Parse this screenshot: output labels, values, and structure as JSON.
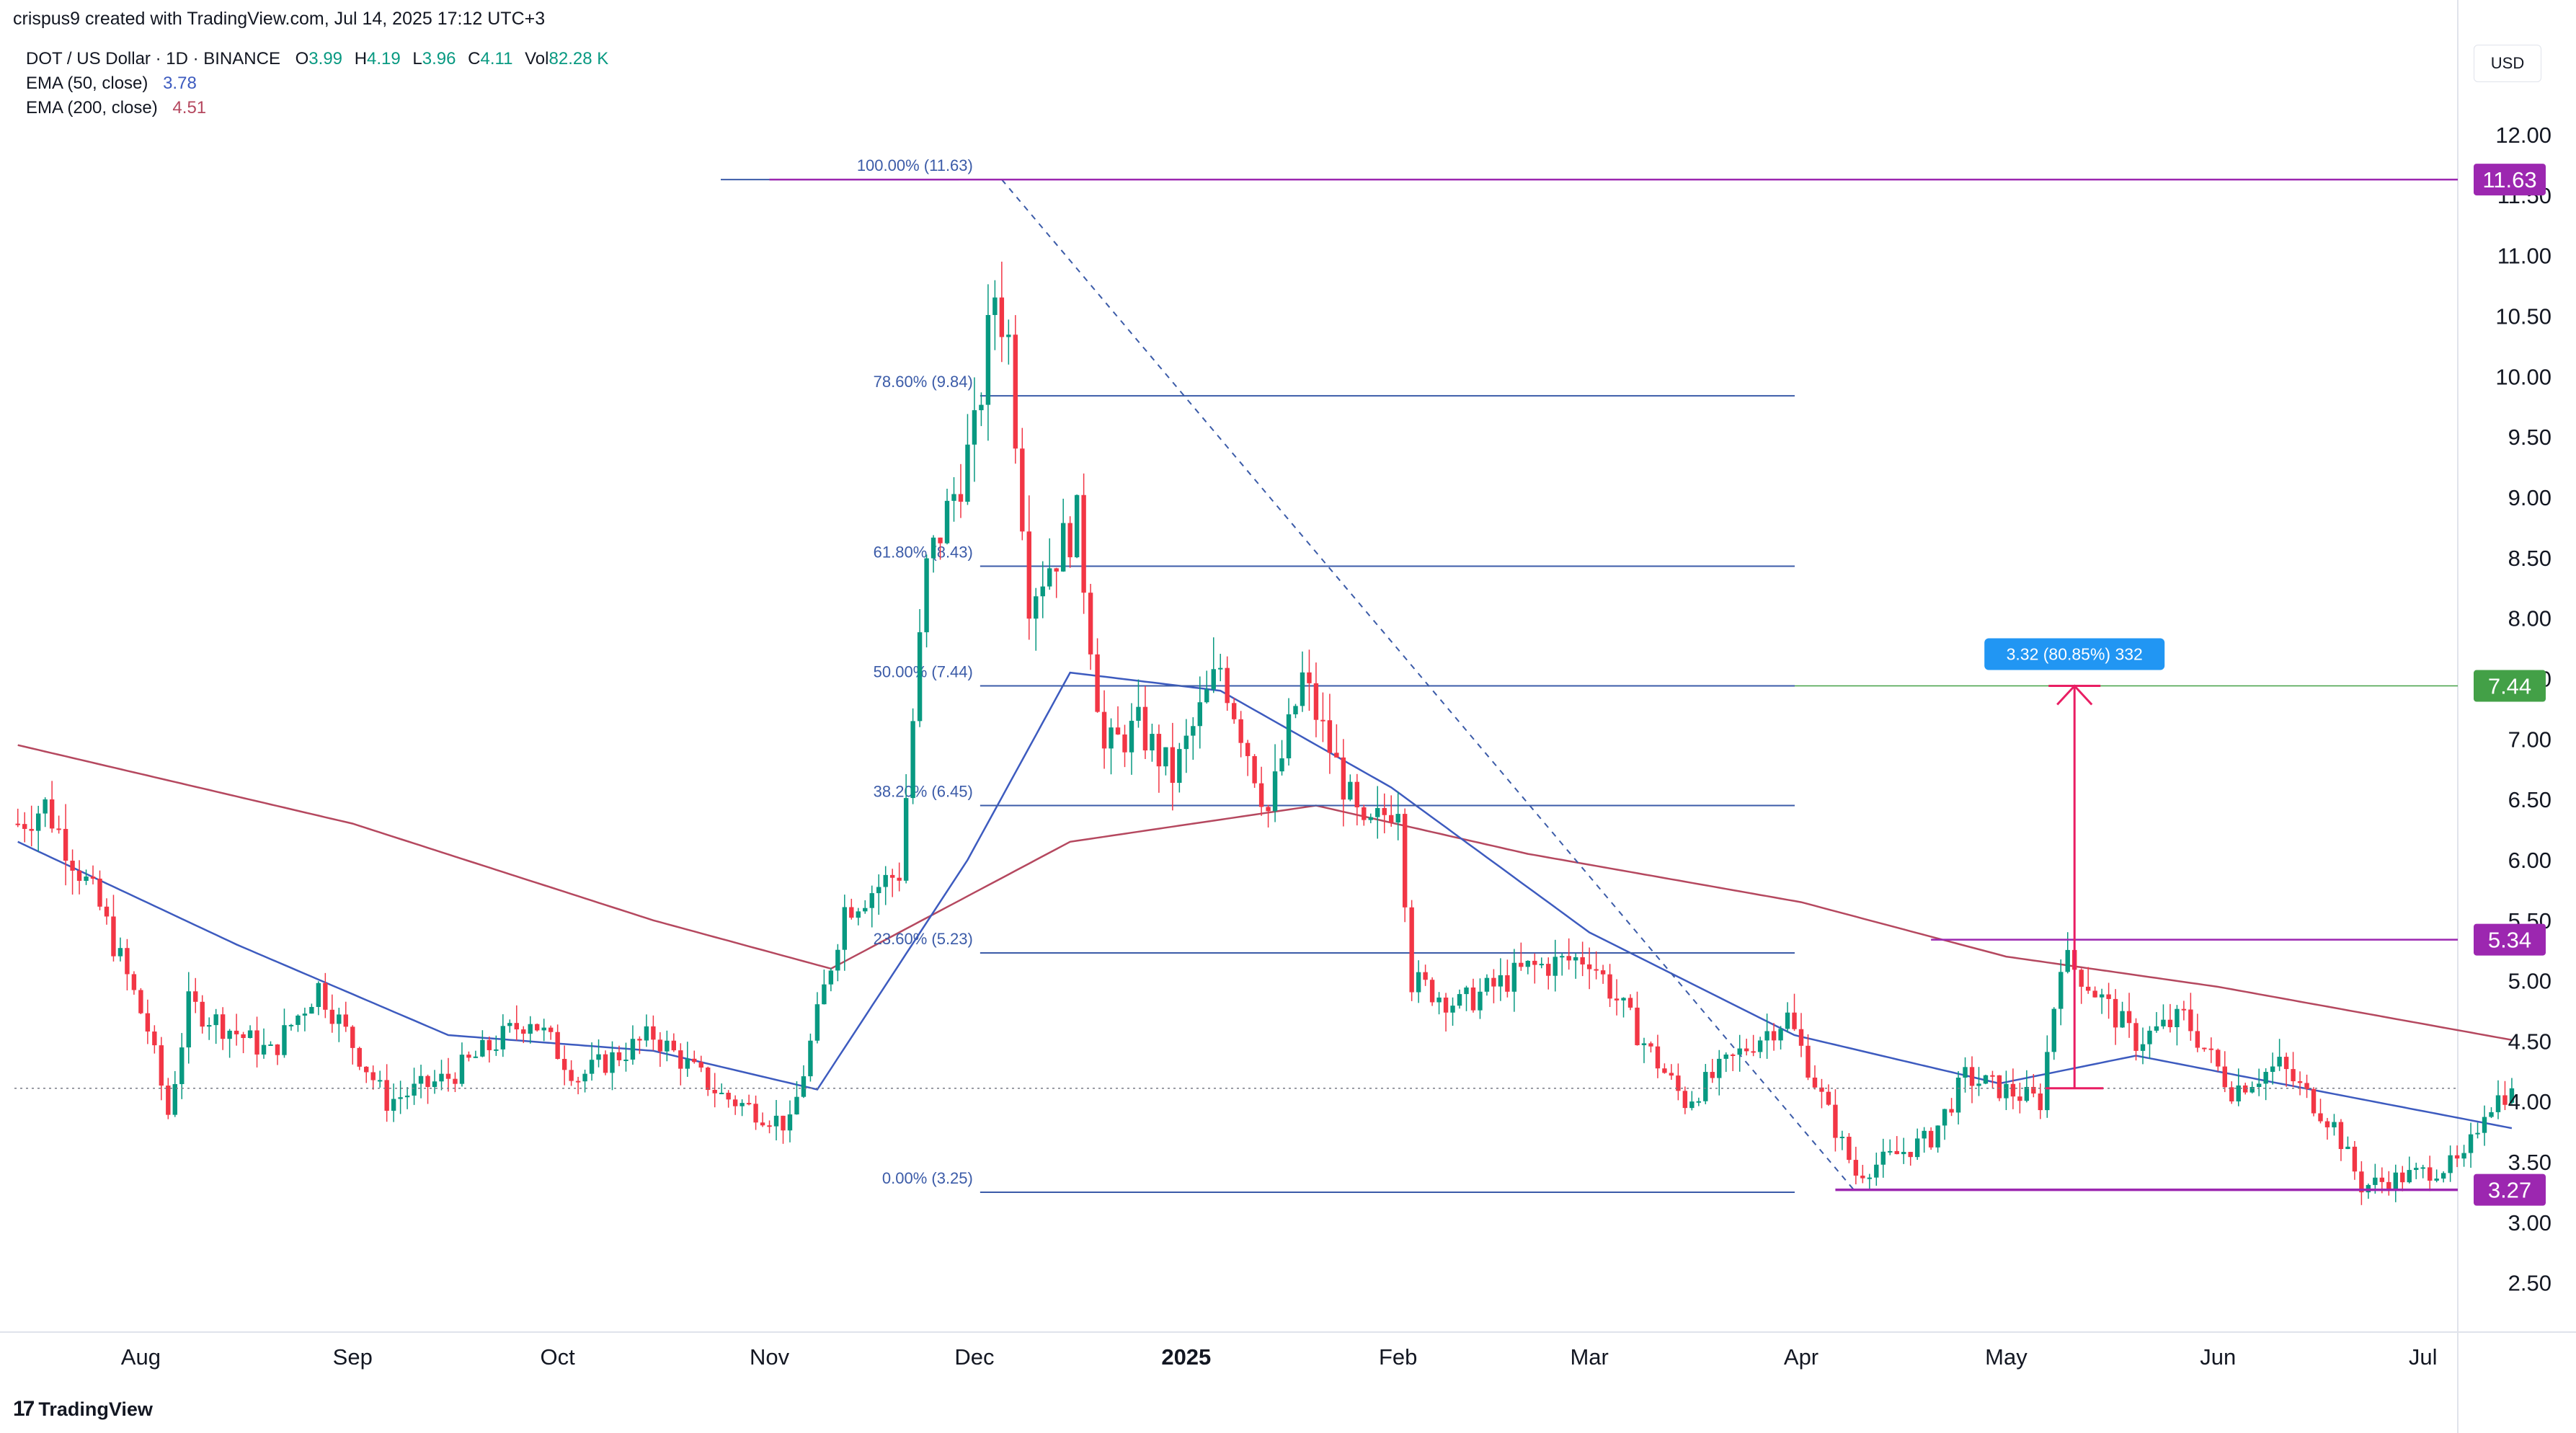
{
  "header": {
    "credit": "crispus9 created with TradingView.com, Jul 14, 2025 17:12 UTC+3",
    "symbol": "DOT / US Dollar · 1D · BINANCE",
    "ohlc": {
      "o_label": "O",
      "o": "3.99",
      "h_label": "H",
      "h": "4.19",
      "l_label": "L",
      "l": "3.96",
      "c_label": "C",
      "c": "4.11",
      "vol_label": "Vol",
      "vol": "82.28 K"
    },
    "ema50": {
      "label": "EMA (50, close)",
      "value": "3.78",
      "color": "#3d5bbf"
    },
    "ema200": {
      "label": "EMA (200, close)",
      "value": "4.51",
      "color": "#b5485f"
    }
  },
  "currency_button": "USD",
  "brand": {
    "logo_mark": "17",
    "name": "TradingView"
  },
  "colors": {
    "up": "#089981",
    "down": "#f23645",
    "fib": "#3b5ba8",
    "purple": "#9c27b0",
    "green": "#43a047",
    "arrow": "#e91e63",
    "measure_bg": "#2196f3"
  },
  "chart_data": {
    "type": "candlestick",
    "timeframe": "1D",
    "ylim": [
      2.2,
      12.4
    ],
    "y_ticks": [
      "2.50",
      "3.00",
      "3.50",
      "4.00",
      "4.50",
      "5.00",
      "5.50",
      "6.00",
      "6.50",
      "7.00",
      "7.50",
      "8.00",
      "8.50",
      "9.00",
      "9.50",
      "10.00",
      "10.50",
      "11.00",
      "11.50",
      "12.00"
    ],
    "x_labels": [
      {
        "label": "Aug",
        "date": "2024-08-01"
      },
      {
        "label": "Sep",
        "date": "2024-09-01"
      },
      {
        "label": "Oct",
        "date": "2024-10-01"
      },
      {
        "label": "Nov",
        "date": "2024-11-01"
      },
      {
        "label": "Dec",
        "date": "2024-12-01"
      },
      {
        "label": "2025",
        "date": "2025-01-01",
        "bold": true
      },
      {
        "label": "Feb",
        "date": "2025-02-01"
      },
      {
        "label": "Mar",
        "date": "2025-03-01"
      },
      {
        "label": "Apr",
        "date": "2025-04-01"
      },
      {
        "label": "May",
        "date": "2025-05-01"
      },
      {
        "label": "Jun",
        "date": "2025-06-01"
      },
      {
        "label": "Jul",
        "date": "2025-07-01"
      }
    ],
    "price_keypoints": [
      [
        "2024-07-14",
        6.3
      ],
      [
        "2024-07-18",
        6.45
      ],
      [
        "2024-07-26",
        5.6
      ],
      [
        "2024-08-02",
        4.6
      ],
      [
        "2024-08-05",
        3.9
      ],
      [
        "2024-08-08",
        4.8
      ],
      [
        "2024-08-20",
        4.4
      ],
      [
        "2024-08-27",
        4.95
      ],
      [
        "2024-09-06",
        4.0
      ],
      [
        "2024-09-15",
        4.2
      ],
      [
        "2024-09-27",
        4.7
      ],
      [
        "2024-10-04",
        4.2
      ],
      [
        "2024-10-15",
        4.55
      ],
      [
        "2024-10-25",
        4.05
      ],
      [
        "2024-11-04",
        3.8
      ],
      [
        "2024-11-12",
        5.6
      ],
      [
        "2024-11-20",
        5.9
      ],
      [
        "2024-11-24",
        8.4
      ],
      [
        "2024-12-01",
        9.5
      ],
      [
        "2024-12-04",
        10.7
      ],
      [
        "2024-12-06",
        10.3
      ],
      [
        "2024-12-09",
        8.2
      ],
      [
        "2024-12-16",
        8.8
      ],
      [
        "2024-12-20",
        6.9
      ],
      [
        "2024-12-25",
        7.1
      ],
      [
        "2024-12-30",
        6.7
      ],
      [
        "2025-01-06",
        7.6
      ],
      [
        "2025-01-13",
        6.4
      ],
      [
        "2025-01-18",
        7.5
      ],
      [
        "2025-01-27",
        6.2
      ],
      [
        "2025-02-01",
        6.5
      ],
      [
        "2025-02-03",
        5.0
      ],
      [
        "2025-02-10",
        4.8
      ],
      [
        "2025-02-20",
        5.1
      ],
      [
        "2025-03-01",
        5.2
      ],
      [
        "2025-03-10",
        4.4
      ],
      [
        "2025-03-15",
        4.0
      ],
      [
        "2025-03-25",
        4.5
      ],
      [
        "2025-03-30",
        4.7
      ],
      [
        "2025-04-05",
        3.9
      ],
      [
        "2025-04-09",
        3.4
      ],
      [
        "2025-04-20",
        3.7
      ],
      [
        "2025-04-25",
        4.2
      ],
      [
        "2025-05-06",
        4.0
      ],
      [
        "2025-05-09",
        5.2
      ],
      [
        "2025-05-12",
        5.05
      ],
      [
        "2025-05-20",
        4.5
      ],
      [
        "2025-05-27",
        4.7
      ],
      [
        "2025-06-03",
        4.1
      ],
      [
        "2025-06-10",
        4.3
      ],
      [
        "2025-06-18",
        3.8
      ],
      [
        "2025-06-22",
        3.3
      ],
      [
        "2025-06-30",
        3.4
      ],
      [
        "2025-07-07",
        3.5
      ],
      [
        "2025-07-10",
        3.95
      ],
      [
        "2025-07-14",
        4.11
      ]
    ],
    "ema50_points": [
      [
        "2024-07-14",
        6.15
      ],
      [
        "2024-08-15",
        5.3
      ],
      [
        "2024-09-15",
        4.55
      ],
      [
        "2024-10-15",
        4.42
      ],
      [
        "2024-11-08",
        4.1
      ],
      [
        "2024-11-30",
        6.0
      ],
      [
        "2024-12-15",
        7.55
      ],
      [
        "2025-01-06",
        7.4
      ],
      [
        "2025-01-31",
        6.6
      ],
      [
        "2025-03-01",
        5.4
      ],
      [
        "2025-03-31",
        4.55
      ],
      [
        "2025-04-30",
        4.15
      ],
      [
        "2025-05-20",
        4.38
      ],
      [
        "2025-06-10",
        4.15
      ],
      [
        "2025-07-14",
        3.78
      ]
    ],
    "ema200_points": [
      [
        "2024-07-14",
        6.95
      ],
      [
        "2024-09-01",
        6.3
      ],
      [
        "2024-10-15",
        5.5
      ],
      [
        "2024-11-10",
        5.1
      ],
      [
        "2024-12-15",
        6.15
      ],
      [
        "2025-01-20",
        6.45
      ],
      [
        "2025-02-20",
        6.05
      ],
      [
        "2025-04-01",
        5.65
      ],
      [
        "2025-05-01",
        5.2
      ],
      [
        "2025-06-01",
        4.95
      ],
      [
        "2025-07-14",
        4.51
      ]
    ],
    "fibonacci": {
      "start_date": "2024-12-05",
      "end_date": "2025-04-09",
      "levels": [
        {
          "label": "100.00% (11.63)",
          "price": 11.63
        },
        {
          "label": "78.60% (9.84)",
          "price": 9.84
        },
        {
          "label": "61.80% (8.43)",
          "price": 8.43
        },
        {
          "label": "50.00% (7.44)",
          "price": 7.44
        },
        {
          "label": "38.20% (6.45)",
          "price": 6.45
        },
        {
          "label": "23.60% (5.23)",
          "price": 5.23
        },
        {
          "label": "0.00% (3.25)",
          "price": 3.25
        }
      ]
    },
    "horizontal_lines": [
      {
        "price": 11.63,
        "label": "11.63",
        "color": "#9c27b0",
        "from": "2024-11-01"
      },
      {
        "price": 5.34,
        "label": "5.34",
        "color": "#9c27b0",
        "from": "2025-04-20"
      },
      {
        "price": 3.27,
        "label": "3.27",
        "color": "#9c27b0",
        "from": "2025-04-06"
      }
    ],
    "price_badges": [
      {
        "price": 11.63,
        "label": "11.63",
        "color": "#9c27b0"
      },
      {
        "price": 7.44,
        "label": "7.44",
        "color": "#43a047"
      },
      {
        "price": 5.34,
        "label": "5.34",
        "color": "#9c27b0"
      },
      {
        "price": 3.27,
        "label": "3.27",
        "color": "#9c27b0"
      }
    ],
    "current_price": 4.11,
    "measurement": {
      "label": "3.32 (80.85%) 332",
      "date": "2025-05-11",
      "from_price": 4.11,
      "to_price": 7.44
    },
    "trendline": {
      "from_date": "2024-12-05",
      "from_price": 11.63,
      "to_date": "2025-04-09",
      "to_price": 3.25
    }
  }
}
